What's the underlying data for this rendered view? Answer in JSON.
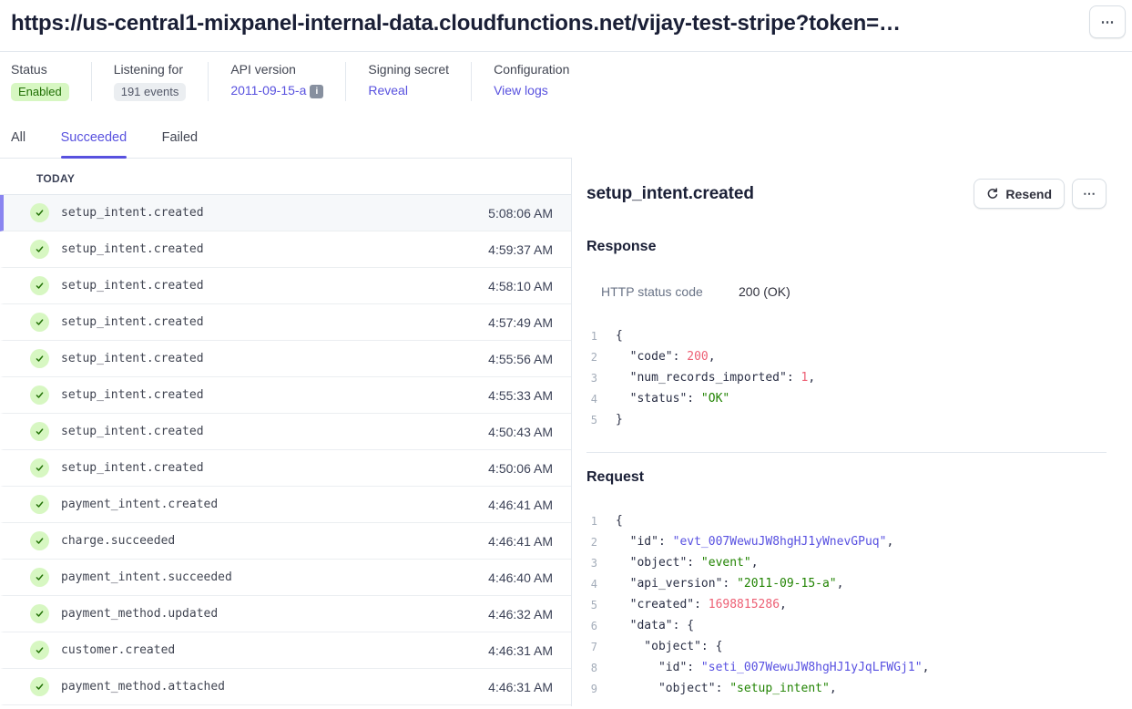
{
  "colors": {
    "accent_purple": "#5851df",
    "success_green_bg": "#d7f7c2",
    "success_green_text": "#217005",
    "code_number": "#ed5f74",
    "code_string": "#228403",
    "code_id": "#5851e1",
    "selected_row_bar": "#8a85f0"
  },
  "icons": {
    "overflow": "⋯",
    "info": "i"
  },
  "header": {
    "title": "https://us-central1-mixpanel-internal-data.cloudfunctions.net/vijay-test-stripe?token=…"
  },
  "meta": {
    "status": {
      "label": "Status",
      "value": "Enabled"
    },
    "listening": {
      "label": "Listening for",
      "value": "191 events"
    },
    "api_version": {
      "label": "API version",
      "value": "2011-09-15-a"
    },
    "signing_secret": {
      "label": "Signing secret",
      "action": "Reveal"
    },
    "configuration": {
      "label": "Configuration",
      "action": "View logs"
    }
  },
  "tabs": [
    {
      "label": "All",
      "active": false
    },
    {
      "label": "Succeeded",
      "active": true
    },
    {
      "label": "Failed",
      "active": false
    }
  ],
  "event_list": {
    "group_label": "TODAY",
    "items": [
      {
        "name": "setup_intent.created",
        "time": "5:08:06 AM",
        "selected": true
      },
      {
        "name": "setup_intent.created",
        "time": "4:59:37 AM",
        "selected": false
      },
      {
        "name": "setup_intent.created",
        "time": "4:58:10 AM",
        "selected": false
      },
      {
        "name": "setup_intent.created",
        "time": "4:57:49 AM",
        "selected": false
      },
      {
        "name": "setup_intent.created",
        "time": "4:55:56 AM",
        "selected": false
      },
      {
        "name": "setup_intent.created",
        "time": "4:55:33 AM",
        "selected": false
      },
      {
        "name": "setup_intent.created",
        "time": "4:50:43 AM",
        "selected": false
      },
      {
        "name": "setup_intent.created",
        "time": "4:50:06 AM",
        "selected": false
      },
      {
        "name": "payment_intent.created",
        "time": "4:46:41 AM",
        "selected": false
      },
      {
        "name": "charge.succeeded",
        "time": "4:46:41 AM",
        "selected": false
      },
      {
        "name": "payment_intent.succeeded",
        "time": "4:46:40 AM",
        "selected": false
      },
      {
        "name": "payment_method.updated",
        "time": "4:46:32 AM",
        "selected": false
      },
      {
        "name": "customer.created",
        "time": "4:46:31 AM",
        "selected": false
      },
      {
        "name": "payment_method.attached",
        "time": "4:46:31 AM",
        "selected": false
      }
    ]
  },
  "detail": {
    "title": "setup_intent.created",
    "resend_label": "Resend",
    "response": {
      "heading": "Response",
      "http_status_label": "HTTP status code",
      "http_status_value": "200 (OK)",
      "code_lines": [
        [
          {
            "t": "{",
            "c": "k"
          }
        ],
        [
          {
            "t": "  \"code\": ",
            "c": "k"
          },
          {
            "t": "200",
            "c": "n"
          },
          {
            "t": ",",
            "c": "k"
          }
        ],
        [
          {
            "t": "  \"num_records_imported\": ",
            "c": "k"
          },
          {
            "t": "1",
            "c": "n"
          },
          {
            "t": ",",
            "c": "k"
          }
        ],
        [
          {
            "t": "  \"status\": ",
            "c": "k"
          },
          {
            "t": "\"OK\"",
            "c": "s"
          }
        ],
        [
          {
            "t": "}",
            "c": "k"
          }
        ]
      ]
    },
    "request": {
      "heading": "Request",
      "code_lines": [
        [
          {
            "t": "{",
            "c": "k"
          }
        ],
        [
          {
            "t": "  \"id\": ",
            "c": "k"
          },
          {
            "t": "\"evt_007WewuJW8hgHJ1yWnevGPuq\"",
            "c": "b"
          },
          {
            "t": ",",
            "c": "k"
          }
        ],
        [
          {
            "t": "  \"object\": ",
            "c": "k"
          },
          {
            "t": "\"event\"",
            "c": "s"
          },
          {
            "t": ",",
            "c": "k"
          }
        ],
        [
          {
            "t": "  \"api_version\": ",
            "c": "k"
          },
          {
            "t": "\"2011-09-15-a\"",
            "c": "s"
          },
          {
            "t": ",",
            "c": "k"
          }
        ],
        [
          {
            "t": "  \"created\": ",
            "c": "k"
          },
          {
            "t": "1698815286",
            "c": "n"
          },
          {
            "t": ",",
            "c": "k"
          }
        ],
        [
          {
            "t": "  \"data\": {",
            "c": "k"
          }
        ],
        [
          {
            "t": "    \"object\": {",
            "c": "k"
          }
        ],
        [
          {
            "t": "      \"id\": ",
            "c": "k"
          },
          {
            "t": "\"seti_007WewuJW8hgHJ1yJqLFWGj1\"",
            "c": "b"
          },
          {
            "t": ",",
            "c": "k"
          }
        ],
        [
          {
            "t": "      \"object\": ",
            "c": "k"
          },
          {
            "t": "\"setup_intent\"",
            "c": "s"
          },
          {
            "t": ",",
            "c": "k"
          }
        ]
      ]
    }
  }
}
